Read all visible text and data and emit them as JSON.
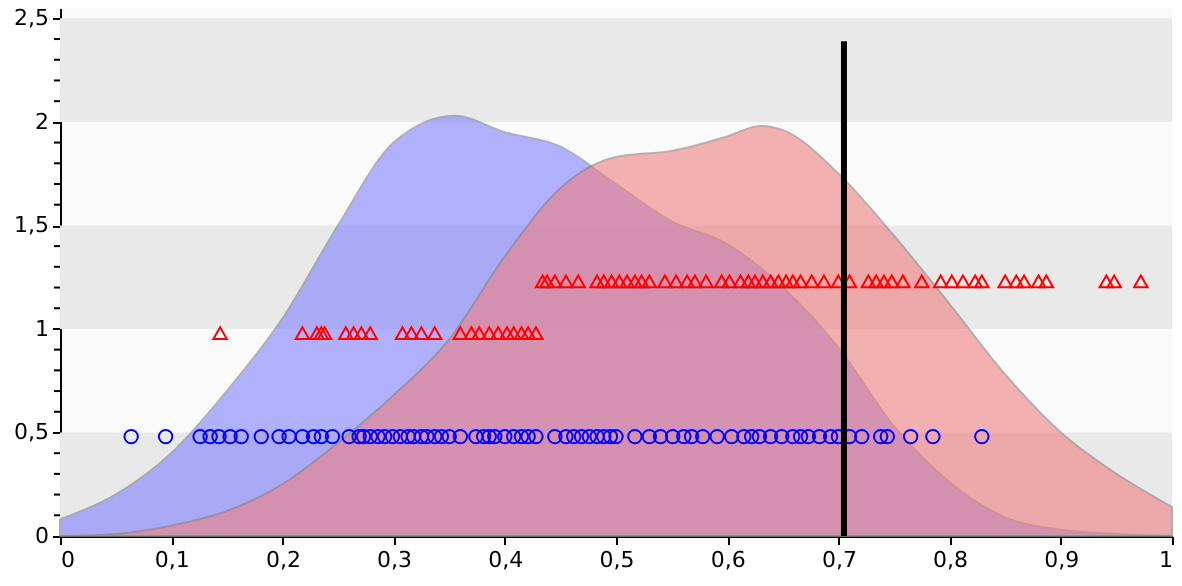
{
  "chart_data": {
    "type": "area",
    "legend": false,
    "bands": [
      {
        "axis": "y",
        "from": 0,
        "to": 0.5,
        "color": "#e9e9e9"
      },
      {
        "axis": "y",
        "from": 1,
        "to": 1.5,
        "color": "#e9e9e9"
      },
      {
        "axis": "y",
        "from": 2,
        "to": 2.5,
        "color": "#e9e9e9"
      }
    ],
    "xlim": [
      0,
      1
    ],
    "ylim": [
      0,
      2.55
    ],
    "xticks": [
      0,
      {
        "value": 0.1,
        "label": "0,1"
      },
      {
        "value": 0.2,
        "label": "0,2"
      },
      {
        "value": 0.3,
        "label": "0,3"
      },
      {
        "value": 0.4,
        "label": "0,4"
      },
      {
        "value": 0.5,
        "label": "0,5"
      },
      {
        "value": 0.6,
        "label": "0,6"
      },
      {
        "value": 0.7,
        "label": "0,7"
      },
      {
        "value": 0.8,
        "label": "0,8"
      },
      {
        "value": 0.9,
        "label": "0,9"
      },
      1
    ],
    "yticks": [
      0,
      {
        "value": 0.1,
        "label": null
      },
      {
        "value": 0.2,
        "label": null
      },
      {
        "value": 0.3,
        "label": null
      },
      {
        "value": 0.4,
        "label": null
      },
      {
        "value": 0.5,
        "label": "0,5"
      },
      {
        "value": 0.6,
        "label": null
      },
      {
        "value": 0.7,
        "label": null
      },
      {
        "value": 0.8,
        "label": null
      },
      {
        "value": 0.9,
        "label": null
      },
      1,
      {
        "value": 1.1,
        "label": null
      },
      {
        "value": 1.2,
        "label": null
      },
      {
        "value": 1.3,
        "label": null
      },
      {
        "value": 1.4,
        "label": null
      },
      {
        "value": 1.5,
        "label": "1,5"
      },
      {
        "value": 1.6,
        "label": null
      },
      {
        "value": 1.7,
        "label": null
      },
      {
        "value": 1.8,
        "label": null
      },
      {
        "value": 1.9,
        "label": null
      },
      2,
      {
        "value": 2.1,
        "label": null
      },
      {
        "value": 2.2,
        "label": null
      },
      {
        "value": 2.3,
        "label": null
      },
      {
        "value": 2.4,
        "label": null
      },
      {
        "value": 2.5,
        "label": "2,5"
      }
    ],
    "series": [
      {
        "type": "area",
        "color": "#8080ff",
        "x": [
          0,
          0.05,
          0.1,
          0.15,
          0.2,
          0.25,
          0.3,
          0.355,
          0.4,
          0.45,
          0.5,
          0.55,
          0.6,
          0.65,
          0.7,
          0.75,
          0.8,
          0.85,
          0.9,
          0.95,
          1
        ],
        "values": [
          0.08,
          0.2,
          0.4,
          0.7,
          1.05,
          1.5,
          1.9,
          2.03,
          1.95,
          1.88,
          1.7,
          1.52,
          1.41,
          1.2,
          0.91,
          0.53,
          0.26,
          0.09,
          0.03,
          0.01,
          0
        ]
      },
      {
        "type": "area",
        "color": "#f08080",
        "x": [
          0,
          0.05,
          0.1,
          0.15,
          0.2,
          0.25,
          0.3,
          0.35,
          0.4,
          0.45,
          0.5,
          0.55,
          0.6,
          0.63,
          0.65,
          0.7,
          0.75,
          0.8,
          0.85,
          0.9,
          0.95,
          1
        ],
        "values": [
          0,
          0.01,
          0.05,
          0.12,
          0.25,
          0.45,
          0.68,
          0.95,
          1.35,
          1.68,
          1.83,
          1.86,
          1.93,
          1.98,
          1.96,
          1.75,
          1.45,
          1.12,
          0.78,
          0.5,
          0.3,
          0.14
        ]
      },
      {
        "type": "scatter",
        "marker": "circle",
        "color": "#0000ff",
        "x": [
          0.064,
          0.095,
          0.126,
          0.135,
          0.143,
          0.153,
          0.163,
          0.181,
          0.197,
          0.206,
          0.218,
          0.228,
          0.235,
          0.245,
          0.26,
          0.269,
          0.273,
          0.279,
          0.286,
          0.292,
          0.299,
          0.306,
          0.313,
          0.318,
          0.325,
          0.33,
          0.337,
          0.343,
          0.35,
          0.36,
          0.374,
          0.381,
          0.386,
          0.391,
          0.4,
          0.408,
          0.415,
          0.421,
          0.428,
          0.445,
          0.455,
          0.462,
          0.469,
          0.476,
          0.483,
          0.489,
          0.495,
          0.5,
          0.517,
          0.53,
          0.54,
          0.551,
          0.561,
          0.568,
          0.578,
          0.591,
          0.604,
          0.615,
          0.622,
          0.629,
          0.639,
          0.649,
          0.659,
          0.666,
          0.673,
          0.683,
          0.693,
          0.7,
          0.71,
          0.721,
          0.738,
          0.744,
          0.765,
          0.785,
          0.829
        ],
        "values": [
          0.48,
          0.48,
          0.48,
          0.48,
          0.48,
          0.48,
          0.48,
          0.48,
          0.48,
          0.48,
          0.48,
          0.48,
          0.48,
          0.48,
          0.48,
          0.48,
          0.48,
          0.48,
          0.48,
          0.48,
          0.48,
          0.48,
          0.48,
          0.48,
          0.48,
          0.48,
          0.48,
          0.48,
          0.48,
          0.48,
          0.48,
          0.48,
          0.48,
          0.48,
          0.48,
          0.48,
          0.48,
          0.48,
          0.48,
          0.48,
          0.48,
          0.48,
          0.48,
          0.48,
          0.48,
          0.48,
          0.48,
          0.48,
          0.48,
          0.48,
          0.48,
          0.48,
          0.48,
          0.48,
          0.48,
          0.48,
          0.48,
          0.48,
          0.48,
          0.48,
          0.48,
          0.48,
          0.48,
          0.48,
          0.48,
          0.48,
          0.48,
          0.48,
          0.48,
          0.48,
          0.48,
          0.48,
          0.48,
          0.48,
          0.48
        ]
      },
      {
        "type": "scatter",
        "marker": "triangle",
        "color": "#ff0000",
        "x": [
          0.144,
          0.218,
          0.231,
          0.235,
          0.238,
          0.257,
          0.264,
          0.271,
          0.279,
          0.308,
          0.316,
          0.325,
          0.337,
          0.36,
          0.37,
          0.377,
          0.386,
          0.394,
          0.402,
          0.408,
          0.415,
          0.421,
          0.428,
          0.434,
          0.438,
          0.445,
          0.455,
          0.466,
          0.483,
          0.489,
          0.496,
          0.503,
          0.51,
          0.517,
          0.523,
          0.53,
          0.544,
          0.554,
          0.564,
          0.571,
          0.581,
          0.595,
          0.602,
          0.612,
          0.619,
          0.625,
          0.632,
          0.639,
          0.646,
          0.653,
          0.659,
          0.666,
          0.676,
          0.687,
          0.7,
          0.71,
          0.727,
          0.734,
          0.741,
          0.748,
          0.758,
          0.775,
          0.792,
          0.802,
          0.812,
          0.823,
          0.829,
          0.85,
          0.86,
          0.867,
          0.88,
          0.887,
          0.941,
          0.948,
          0.972
        ],
        "values": [
          0.98,
          0.98,
          0.98,
          0.98,
          0.98,
          0.98,
          0.98,
          0.98,
          0.98,
          0.98,
          0.98,
          0.98,
          0.98,
          0.98,
          0.98,
          0.98,
          0.98,
          0.98,
          0.98,
          0.98,
          0.98,
          0.98,
          0.98,
          1.23,
          1.23,
          1.23,
          1.23,
          1.23,
          1.23,
          1.23,
          1.23,
          1.23,
          1.23,
          1.23,
          1.23,
          1.23,
          1.23,
          1.23,
          1.23,
          1.23,
          1.23,
          1.23,
          1.23,
          1.23,
          1.23,
          1.23,
          1.23,
          1.23,
          1.23,
          1.23,
          1.23,
          1.23,
          1.23,
          1.23,
          1.23,
          1.23,
          1.23,
          1.23,
          1.23,
          1.23,
          1.23,
          1.23,
          1.23,
          1.23,
          1.23,
          1.23,
          1.23,
          1.23,
          1.23,
          1.23,
          1.23,
          1.23,
          1.23,
          1.23,
          1.23
        ]
      },
      {
        "type": "line",
        "color": "#000000",
        "x": [
          0.705,
          0.705
        ],
        "values": [
          0,
          2.39
        ]
      }
    ]
  }
}
